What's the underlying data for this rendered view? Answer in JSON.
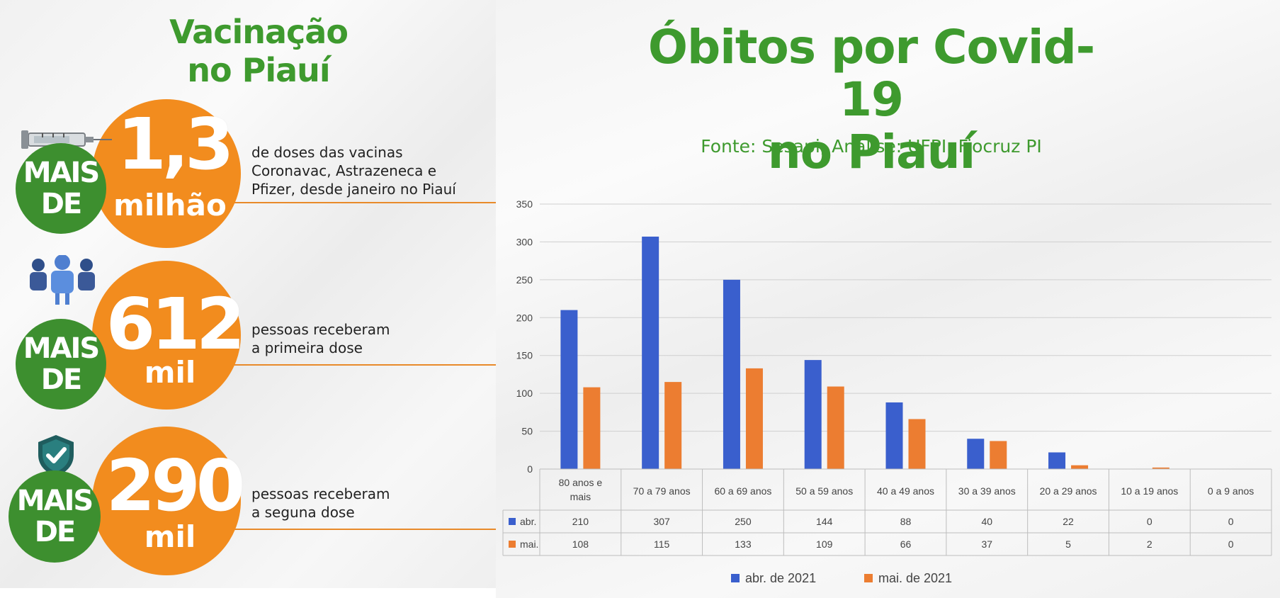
{
  "left": {
    "title_line1": "Vacinação",
    "title_line2": "no Piauí",
    "stats": [
      {
        "badge_line1": "MAIS",
        "badge_line2": "DE",
        "number": "1,3",
        "unit": "milhão",
        "text_lines": [
          "de doses das vacinas",
          "Coronavac, Astrazeneca e",
          "Pfizer, desde janeiro no Piauí"
        ],
        "icon": "syringe-icon"
      },
      {
        "badge_line1": "MAIS",
        "badge_line2": "DE",
        "number": "612",
        "unit": "mil",
        "text_lines": [
          "pessoas receberam",
          "a primeira dose"
        ],
        "icon": "people-icon"
      },
      {
        "badge_line1": "MAIS",
        "badge_line2": "DE",
        "number": "290",
        "unit": "mil",
        "text_lines": [
          "pessoas receberam",
          "a seguna dose"
        ],
        "icon": "shield-check-icon"
      }
    ]
  },
  "right": {
    "title_line1": "Óbitos por Covid-19",
    "title_line2": "no Piauí",
    "subtitle": "Fonte: Sesapi; Análise: UFPI: Fiocruz PI"
  },
  "colors": {
    "green": "#3e9a2e",
    "orange": "#f28c1e",
    "series_abr": "#3a5fcd",
    "series_mai": "#ec7d31"
  },
  "chart_data": {
    "type": "bar",
    "categories": [
      "80 anos e mais",
      "70 a 79 anos",
      "60 a 69 anos",
      "50 a 59 anos",
      "40 a 49 anos",
      "30 a 39 anos",
      "20 a 29 anos",
      "10 a 19 anos",
      "0 a 9 anos"
    ],
    "category_lines": [
      [
        "80 anos e",
        "mais"
      ],
      [
        "70 a 79 anos"
      ],
      [
        "60 a 69 anos"
      ],
      [
        "50 a 59 anos"
      ],
      [
        "40 a 49 anos"
      ],
      [
        "30 a 39 anos"
      ],
      [
        "20 a 29 anos"
      ],
      [
        "10 a 19 anos"
      ],
      [
        "0 a 9 anos"
      ]
    ],
    "series": [
      {
        "name": "abr. de 2021",
        "table_label": "abr.",
        "values": [
          210,
          307,
          250,
          144,
          88,
          40,
          22,
          0,
          0
        ]
      },
      {
        "name": "mai. de 2021",
        "table_label": "mai.",
        "values": [
          108,
          115,
          133,
          109,
          66,
          37,
          5,
          2,
          0
        ]
      }
    ],
    "yticks": [
      0,
      50,
      100,
      150,
      200,
      250,
      300,
      350
    ],
    "ylim": [
      0,
      350
    ],
    "grid": true,
    "legend": "bottom",
    "data_table": true
  }
}
